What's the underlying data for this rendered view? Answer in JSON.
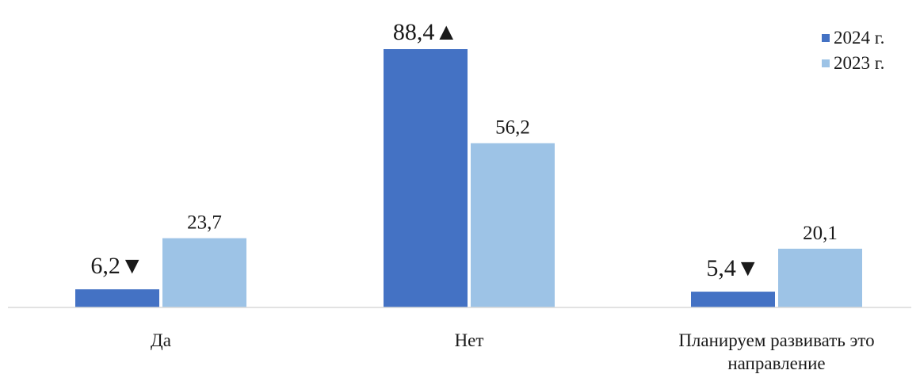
{
  "chart_data": {
    "type": "bar",
    "categories": [
      "Да",
      "Нет",
      "Планируем развивать это направление"
    ],
    "series": [
      {
        "name": "2024 г.",
        "color": "#4472C4",
        "values": [
          6.2,
          88.4,
          5.4
        ],
        "labels": [
          "6,2",
          "88,4",
          "5,4"
        ],
        "trend_markers": [
          "▼",
          "▲",
          "▼"
        ]
      },
      {
        "name": "2023 г.",
        "color": "#9DC3E6",
        "values": [
          23.7,
          56.2,
          20.1
        ],
        "labels": [
          "23,7",
          "56,2",
          "20,1"
        ]
      }
    ],
    "ylim": [
      0,
      100
    ],
    "grid": false,
    "legend_position": "top-right",
    "axis_color": "#D9D9D9"
  }
}
